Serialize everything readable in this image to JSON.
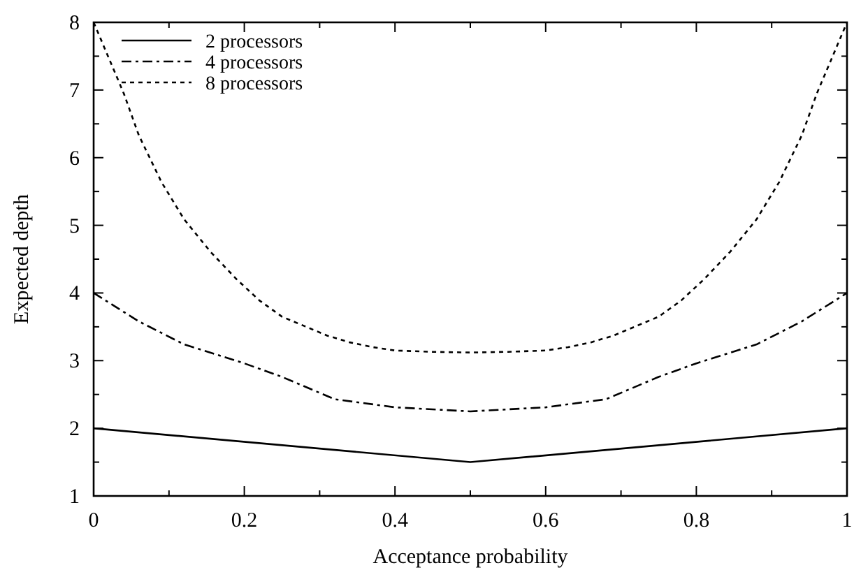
{
  "chart_data": {
    "type": "line",
    "xlabel": "Acceptance probability",
    "ylabel": "Expected depth",
    "xlim": [
      0,
      1
    ],
    "ylim": [
      1,
      8
    ],
    "xticks": [
      0,
      {
        "value": 0.1,
        "label": null
      },
      0.2,
      {
        "value": 0.3,
        "label": null
      },
      0.4,
      {
        "value": 0.5,
        "label": null
      },
      0.6,
      {
        "value": 0.7,
        "label": null
      },
      0.8,
      {
        "value": 0.9,
        "label": null
      },
      1
    ],
    "yticks": [
      1,
      {
        "value": 1.5,
        "label": null
      },
      2,
      {
        "value": 2.5,
        "label": null
      },
      3,
      {
        "value": 3.5,
        "label": null
      },
      4,
      {
        "value": 4.5,
        "label": null
      },
      5,
      {
        "value": 5.5,
        "label": null
      },
      6,
      {
        "value": 6.5,
        "label": null
      },
      7,
      {
        "value": 7.5,
        "label": null
      },
      8
    ],
    "grid": false,
    "legend": "top left",
    "series": [
      {
        "name": "2 processors",
        "color": "#000000",
        "line_style": "solid",
        "x": [
          0,
          0.5,
          1
        ],
        "values": [
          2,
          1.5,
          2
        ]
      },
      {
        "name": "4 processors",
        "color": "#000000",
        "line_style": "dashed",
        "x": [
          0,
          0.06,
          0.12,
          0.2,
          0.25,
          0.32,
          0.4,
          0.5,
          0.6,
          0.68,
          0.75,
          0.8,
          0.88,
          0.94,
          1
        ],
        "values": [
          4,
          3.58,
          3.24,
          2.96,
          2.76,
          2.43,
          2.31,
          2.25,
          2.31,
          2.43,
          2.76,
          2.96,
          3.24,
          3.58,
          4
        ]
      },
      {
        "name": "8 processors",
        "color": "#000000",
        "line_style": "dotted",
        "x": [
          0,
          0.04,
          0.06,
          0.09,
          0.12,
          0.155,
          0.19,
          0.22,
          0.25,
          0.28,
          0.31,
          0.34,
          0.37,
          0.4,
          0.45,
          0.5,
          0.55,
          0.6,
          0.63,
          0.66,
          0.69,
          0.72,
          0.75,
          0.78,
          0.81,
          0.845,
          0.88,
          0.91,
          0.94,
          0.96,
          1
        ],
        "values": [
          8,
          6.95,
          6.33,
          5.64,
          5.09,
          4.61,
          4.2,
          3.89,
          3.65,
          3.51,
          3.37,
          3.27,
          3.2,
          3.15,
          3.13,
          3.12,
          3.13,
          3.15,
          3.2,
          3.27,
          3.37,
          3.51,
          3.65,
          3.89,
          4.2,
          4.61,
          5.09,
          5.64,
          6.33,
          6.95,
          8
        ]
      }
    ]
  }
}
